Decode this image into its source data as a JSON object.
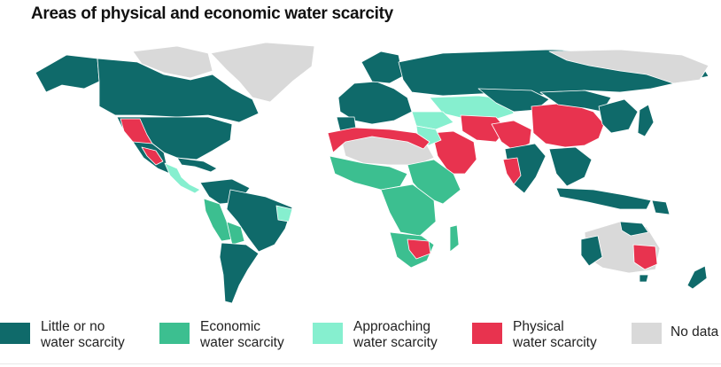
{
  "title": "Areas of physical and economic water scarcity",
  "colors": {
    "little_or_no": "#0f6a6a",
    "economic": "#3cbf90",
    "approaching": "#86efcf",
    "physical": "#e8334f",
    "no_data": "#d9d9d9"
  },
  "legend": [
    {
      "key": "little_or_no",
      "line1": "Little or no",
      "line2": "water scarcity",
      "color": "#0f6a6a"
    },
    {
      "key": "economic",
      "line1": "Economic",
      "line2": "water scarcity",
      "color": "#3cbf90"
    },
    {
      "key": "approaching",
      "line1": "Approaching",
      "line2": "water scarcity",
      "color": "#86efcf"
    },
    {
      "key": "physical",
      "line1": "Physical",
      "line2": "water scarcity",
      "color": "#e8334f"
    },
    {
      "key": "no_data",
      "line1": "No data",
      "line2": "",
      "color": "#d9d9d9"
    }
  ]
}
